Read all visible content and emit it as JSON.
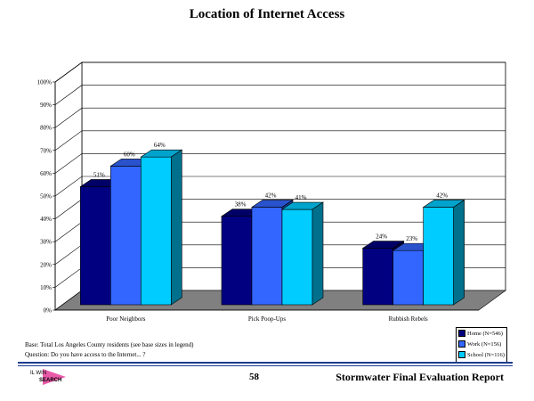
{
  "title": "Location of Internet Access",
  "notes": {
    "base": "Base: Total Los Angeles County residents (see base sizes in legend)",
    "question": "Question: Do you have access to the Internet... ?"
  },
  "footer": {
    "page_number": "58",
    "report_title": "Stormwater Final Evaluation Report",
    "logo_text_top": "IL WIN",
    "logo_text_bottom": "SEARCH"
  },
  "colors": {
    "home": "#000080",
    "work": "#3366ff",
    "school": "#00ccff",
    "floor": "#808080",
    "grid": "#000000"
  },
  "chart_data": {
    "type": "bar",
    "title": "Location of Internet Access",
    "categories": [
      "Poor Neighbors",
      "Pick Poop-Ups",
      "Rubbish Rebels"
    ],
    "series": [
      {
        "name": "Home (N=546)",
        "values": [
          51,
          38,
          24
        ]
      },
      {
        "name": "Work (N=156)",
        "values": [
          60,
          42,
          23
        ]
      },
      {
        "name": "School (N=116)",
        "values": [
          64,
          41,
          42
        ]
      }
    ],
    "value_labels": [
      [
        "51%",
        "38%",
        "24%"
      ],
      [
        "60%",
        "42%",
        "23%"
      ],
      [
        "64%",
        "41%",
        "42%"
      ]
    ],
    "y_ticks": [
      "0%",
      "10%",
      "20%",
      "30%",
      "40%",
      "50%",
      "60%",
      "70%",
      "80%",
      "90%",
      "100%"
    ],
    "ylim": [
      0,
      100
    ],
    "grid": true,
    "legend_position": "bottom-right"
  }
}
